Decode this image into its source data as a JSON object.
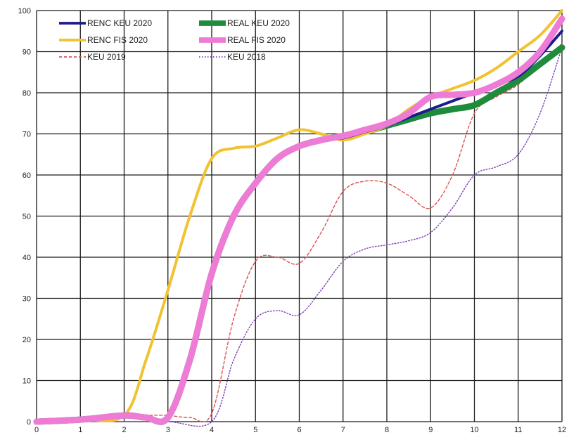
{
  "chart_data": {
    "type": "line",
    "xlim": [
      0,
      12
    ],
    "ylim": [
      0,
      100
    ],
    "x_ticks": [
      "0",
      "1",
      "2",
      "3",
      "4",
      "5",
      "6",
      "7",
      "8",
      "9",
      "10",
      "11",
      "12"
    ],
    "y_ticks": [
      "0",
      "10",
      "20",
      "30",
      "40",
      "50",
      "60",
      "70",
      "80",
      "90",
      "100"
    ],
    "grid": true,
    "legend_position": "top-left",
    "series": [
      {
        "name": "RENC KEU 2020",
        "color": "#1c1c8a",
        "style": "solid",
        "weight": "medium",
        "x": [
          0,
          1,
          2,
          2.5,
          3,
          3.5,
          4,
          4.5,
          5,
          5.5,
          6,
          6.5,
          7,
          7.5,
          8,
          8.5,
          9,
          9.5,
          10,
          10.5,
          11,
          11.5,
          12
        ],
        "y": [
          0,
          0.5,
          1.5,
          1,
          1,
          15,
          36,
          50,
          58,
          64,
          67,
          68.5,
          69,
          70.5,
          72,
          74,
          76,
          78,
          80,
          82,
          84,
          89,
          95
        ]
      },
      {
        "name": "REAL KEU 2020",
        "color": "#1e8c3c",
        "style": "solid",
        "weight": "bold",
        "x": [
          0,
          1,
          2,
          2.5,
          3,
          3.5,
          4,
          4.5,
          5,
          5.5,
          6,
          6.5,
          7,
          7.5,
          8,
          8.5,
          9,
          9.5,
          10,
          10.5,
          11,
          11.5,
          12
        ],
        "y": [
          0,
          0.5,
          1.5,
          1,
          1,
          15,
          36,
          50,
          58,
          64,
          67,
          68.5,
          69.5,
          70.5,
          72,
          73.5,
          75,
          76,
          77,
          80,
          83,
          87,
          91
        ]
      },
      {
        "name": "RENC FIS 2020",
        "color": "#f1c232",
        "style": "solid",
        "weight": "medium",
        "x": [
          0,
          1,
          2,
          2.5,
          3,
          3.5,
          4,
          4.5,
          5,
          5.5,
          6,
          6.5,
          7,
          7.5,
          8,
          8.5,
          9,
          9.5,
          10,
          10.5,
          11,
          11.5,
          12
        ],
        "y": [
          0,
          0.5,
          1.5,
          15,
          32,
          50,
          64,
          66.5,
          67,
          69,
          71,
          70,
          68.5,
          70,
          72,
          76,
          79,
          81,
          83,
          86,
          90,
          94,
          100
        ]
      },
      {
        "name": "REAL FIS 2020",
        "color": "#ee7bd6",
        "style": "solid",
        "weight": "bold",
        "x": [
          0,
          1,
          2,
          2.5,
          3,
          3.5,
          4,
          4.5,
          5,
          5.5,
          6,
          6.5,
          7,
          7.5,
          8,
          8.5,
          9,
          9.5,
          10,
          10.5,
          11,
          11.5,
          12
        ],
        "y": [
          0,
          0.5,
          1.5,
          1,
          1,
          15,
          36,
          50,
          58,
          64,
          67,
          68.5,
          69.5,
          71,
          72.5,
          75,
          79,
          79.5,
          80,
          82,
          85,
          90,
          98
        ]
      },
      {
        "name": "KEU 2019",
        "color": "#d9534f",
        "style": "dashed",
        "weight": "thin",
        "x": [
          0,
          1,
          2,
          2.5,
          3,
          3.5,
          4,
          4.5,
          5,
          5.5,
          6,
          6.5,
          7,
          7.5,
          8,
          8.5,
          9,
          9.5,
          10,
          10.5,
          11,
          11.5,
          12
        ],
        "y": [
          0,
          0.5,
          1,
          1.5,
          1.5,
          1,
          2,
          25,
          39,
          40,
          38.5,
          46,
          56,
          58.5,
          58,
          55,
          52,
          60,
          75,
          79,
          82,
          87,
          92
        ]
      },
      {
        "name": "KEU 2018",
        "color": "#7b3fb5",
        "style": "dotted",
        "weight": "thin",
        "x": [
          0,
          1,
          2,
          3,
          4,
          4.5,
          5,
          5.5,
          6,
          6.5,
          7,
          7.5,
          8,
          8.5,
          9,
          9.5,
          10,
          10.5,
          11,
          11.5,
          12
        ],
        "y": [
          0,
          0,
          0,
          0,
          0,
          15,
          25,
          27,
          26,
          32,
          39,
          42,
          43,
          44,
          46,
          52,
          60,
          62,
          65,
          75,
          91
        ]
      }
    ]
  }
}
